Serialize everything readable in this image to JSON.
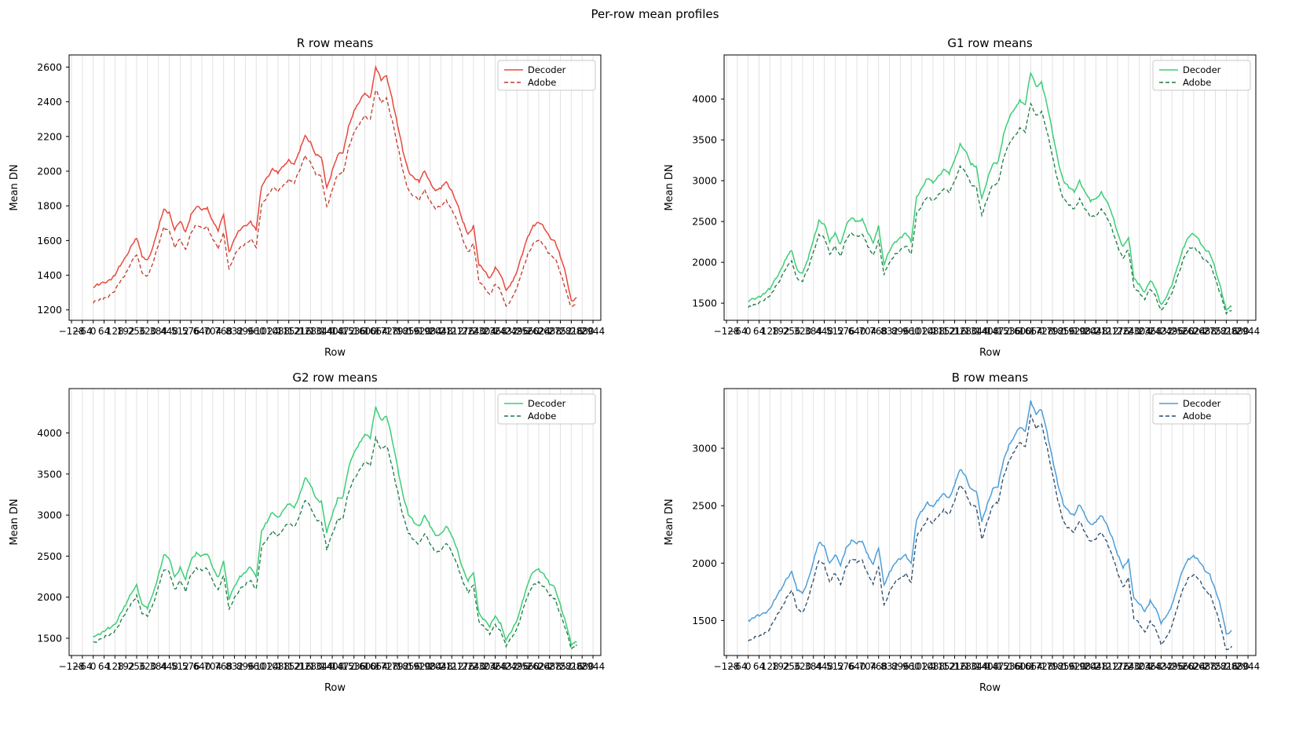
{
  "figure": {
    "title": "Per-row mean profiles",
    "background": "#ffffff"
  },
  "chart_data": {
    "type": "line",
    "suptitle": "Per-row mean profiles",
    "xlabel": "Row",
    "ylabel": "Mean DN",
    "legend": {
      "entries": [
        "Decoder",
        "Adobe"
      ],
      "position": "upper right"
    },
    "grid": {
      "axis": "x",
      "color": "#dedede"
    },
    "xlim": [
      -142,
      2990
    ],
    "xticks": [
      -128,
      -64,
      0,
      64,
      128,
      192,
      256,
      320,
      384,
      448,
      512,
      576,
      640,
      704,
      768,
      832,
      896,
      960,
      1024,
      1088,
      1152,
      1216,
      1280,
      1344,
      1408,
      1472,
      1536,
      1600,
      1664,
      1728,
      1792,
      1856,
      1920,
      1984,
      2048,
      2112,
      2176,
      2240,
      2304,
      2368,
      2432,
      2496,
      2560,
      2624,
      2688,
      2752,
      2816,
      2880,
      2944
    ],
    "shared_x": [
      0,
      32,
      64,
      96,
      128,
      160,
      192,
      224,
      256,
      288,
      320,
      352,
      384,
      416,
      448,
      480,
      512,
      544,
      576,
      608,
      640,
      672,
      704,
      736,
      768,
      800,
      832,
      864,
      896,
      928,
      960,
      992,
      1024,
      1056,
      1088,
      1120,
      1152,
      1184,
      1216,
      1248,
      1280,
      1312,
      1344,
      1376,
      1408,
      1440,
      1472,
      1504,
      1536,
      1568,
      1600,
      1632,
      1664,
      1696,
      1728,
      1760,
      1792,
      1824,
      1856,
      1888,
      1920,
      1952,
      1984,
      2016,
      2048,
      2080,
      2112,
      2144,
      2176,
      2208,
      2240,
      2272,
      2304,
      2336,
      2368,
      2400,
      2432,
      2464,
      2496,
      2528,
      2560,
      2592,
      2624,
      2656,
      2688,
      2720,
      2752,
      2784,
      2816,
      2848
    ],
    "charts": [
      {
        "key": "R",
        "title": "R row means",
        "ylim": [
          1140,
          2670
        ],
        "yticks": [
          1200,
          1400,
          1600,
          1800,
          2000,
          2200,
          2400,
          2600
        ],
        "series": [
          {
            "name": "Decoder",
            "style": "solid",
            "color": "#e8483d",
            "values": [
              1330,
              1345,
              1358,
              1374,
              1400,
              1457,
              1508,
              1571,
              1616,
              1508,
              1489,
              1565,
              1673,
              1781,
              1762,
              1660,
              1711,
              1648,
              1749,
              1794,
              1775,
              1787,
              1711,
              1654,
              1749,
              1533,
              1609,
              1660,
              1686,
              1711,
              1660,
              1914,
              1965,
              2016,
              1990,
              2029,
              2067,
              2041,
              2117,
              2206,
              2168,
              2092,
              2079,
              1902,
              2003,
              2092,
              2105,
              2257,
              2346,
              2397,
              2448,
              2422,
              2600,
              2524,
              2549,
              2422,
              2270,
              2117,
              2003,
              1965,
              1940,
              2003,
              1940,
              1889,
              1902,
              1940,
              1889,
              1813,
              1711,
              1635,
              1686,
              1457,
              1425,
              1381,
              1444,
              1400,
              1311,
              1355,
              1419,
              1521,
              1622,
              1686,
              1705,
              1673,
              1622,
              1597,
              1508,
              1406,
              1254,
              1273
            ]
          },
          {
            "name": "Adobe",
            "style": "dashed",
            "color": "#c0392b",
            "values": [
              1240,
              1255,
              1267,
              1283,
              1308,
              1363,
              1412,
              1474,
              1517,
              1412,
              1394,
              1468,
              1572,
              1677,
              1658,
              1560,
              1609,
              1548,
              1646,
              1689,
              1671,
              1683,
              1609,
              1554,
              1646,
              1437,
              1511,
              1560,
              1584,
              1609,
              1560,
              1806,
              1855,
              1904,
              1880,
              1917,
              1953,
              1929,
              2003,
              2089,
              2052,
              1978,
              1966,
              1794,
              1892,
              1978,
              1990,
              2138,
              2224,
              2273,
              2322,
              2298,
              2470,
              2396,
              2421,
              2298,
              2150,
              2003,
              1892,
              1855,
              1830,
              1892,
              1830,
              1781,
              1794,
              1830,
              1781,
              1707,
              1609,
              1535,
              1584,
              1363,
              1332,
              1289,
              1351,
              1308,
              1222,
              1265,
              1326,
              1425,
              1523,
              1584,
              1603,
              1572,
              1523,
              1498,
              1412,
              1314,
              1216,
              1235
            ]
          }
        ]
      },
      {
        "key": "G1",
        "title": "G1 row means",
        "ylim": [
          1290,
          4540
        ],
        "yticks": [
          1500,
          2000,
          2500,
          3000,
          3500,
          4000
        ],
        "series": [
          {
            "name": "Decoder",
            "style": "solid",
            "color": "#3cce76",
            "values": [
              1520,
              1554,
              1582,
              1618,
              1674,
              1800,
              1912,
              2052,
              2150,
              1912,
              1870,
              2038,
              2276,
              2514,
              2472,
              2248,
              2360,
              2220,
              2444,
              2542,
              2500,
              2528,
              2360,
              2234,
              2444,
              1968,
              2136,
              2248,
              2304,
              2360,
              2248,
              2808,
              2920,
              3032,
              2976,
              3060,
              3144,
              3088,
              3256,
              3452,
              3368,
              3200,
              3172,
              2780,
              3004,
              3200,
              3228,
              3564,
              3760,
              3872,
              3984,
              3928,
              4320,
              4152,
              4208,
              3928,
              3592,
              3256,
              3004,
              2920,
              2864,
              3004,
              2864,
              2752,
              2780,
              2864,
              2752,
              2584,
              2360,
              2192,
              2304,
              1800,
              1730,
              1632,
              1772,
              1674,
              1478,
              1576,
              1716,
              1940,
              2164,
              2304,
              2346,
              2276,
              2164,
              2108,
              1912,
              1688,
              1420,
              1462
            ]
          },
          {
            "name": "Adobe",
            "style": "dashed",
            "color": "#1b7a44",
            "values": [
              1450,
              1480,
              1505,
              1538,
              1588,
              1700,
              1800,
              1925,
              2013,
              1800,
              1763,
              1913,
              2125,
              2338,
              2300,
              2100,
              2200,
              2075,
              2275,
              2363,
              2325,
              2350,
              2200,
              2088,
              2275,
              1850,
              2000,
              2100,
              2150,
              2200,
              2100,
              2600,
              2700,
              2800,
              2750,
              2825,
              2900,
              2850,
              3000,
              3175,
              3100,
              2950,
              2925,
              2575,
              2775,
              2950,
              2975,
              3275,
              3450,
              3550,
              3650,
              3600,
              3950,
              3800,
              3850,
              3600,
              3300,
              3000,
              2775,
              2700,
              2650,
              2775,
              2650,
              2550,
              2575,
              2650,
              2550,
              2400,
              2200,
              2050,
              2150,
              1700,
              1638,
              1550,
              1675,
              1588,
              1413,
              1500,
              1625,
              1825,
              2025,
              2150,
              2188,
              2125,
              2025,
              1975,
              1800,
              1600,
              1370,
              1408
            ]
          }
        ]
      },
      {
        "key": "G2",
        "title": "G2 row means",
        "ylim": [
          1290,
          4540
        ],
        "yticks": [
          1500,
          2000,
          2500,
          3000,
          3500,
          4000
        ],
        "series": [
          {
            "name": "Decoder",
            "style": "solid",
            "color": "#3cce76",
            "values": [
              1525,
              1550,
              1585,
              1622,
              1670,
              1805,
              1908,
              2048,
              2155,
              1915,
              1866,
              2042,
              2270,
              2518,
              2468,
              2244,
              2364,
              2216,
              2448,
              2538,
              2504,
              2524,
              2356,
              2238,
              2440,
              1972,
              2132,
              2252,
              2300,
              2364,
              2244,
              2812,
              2916,
              3036,
              2972,
              3064,
              3140,
              3092,
              3252,
              3456,
              3364,
              3204,
              3168,
              2784,
              3000,
              3204,
              3224,
              3568,
              3756,
              3876,
              3980,
              3932,
              4316,
              4156,
              4204,
              3924,
              3596,
              3252,
              3008,
              2916,
              2868,
              3000,
              2868,
              2756,
              2776,
              2868,
              2748,
              2588,
              2356,
              2196,
              2300,
              1804,
              1726,
              1636,
              1768,
              1678,
              1474,
              1580,
              1712,
              1944,
              2160,
              2308,
              2342,
              2280,
              2160,
              2112,
              1908,
              1692,
              1424,
              1458
            ]
          },
          {
            "name": "Adobe",
            "style": "dashed",
            "color": "#1b7a44",
            "values": [
              1452,
              1478,
              1508,
              1535,
              1590,
              1696,
              1804,
              1921,
              2017,
              1796,
              1766,
              1910,
              2129,
              2334,
              2304,
              2096,
              2204,
              2071,
              2279,
              2359,
              2329,
              2346,
              2204,
              2092,
              2271,
              1854,
              1996,
              2104,
              2146,
              2204,
              2096,
              2604,
              2696,
              2804,
              2746,
              2829,
              2896,
              2854,
              2996,
              3179,
              3096,
              2954,
              2921,
              2579,
              2771,
              2954,
              2971,
              3279,
              3446,
              3554,
              3646,
              3604,
              3946,
              3804,
              3846,
              3596,
              3304,
              2996,
              2779,
              2696,
              2654,
              2771,
              2646,
              2554,
              2571,
              2654,
              2546,
              2404,
              2196,
              2054,
              2146,
              1704,
              1634,
              1554,
              1671,
              1592,
              1409,
              1504,
              1621,
              1829,
              2021,
              2154,
              2184,
              2129,
              2021,
              1979,
              1796,
              1604,
              1366,
              1412
            ]
          }
        ]
      },
      {
        "key": "B",
        "title": "B row means",
        "ylim": [
          1195,
          3520
        ],
        "yticks": [
          1500,
          2000,
          2500,
          3000
        ],
        "series": [
          {
            "name": "Decoder",
            "style": "solid",
            "color": "#4d9ed9",
            "values": [
              1500,
              1523,
              1542,
              1567,
              1605,
              1691,
              1767,
              1863,
              1930,
              1767,
              1739,
              1853,
              2016,
              2178,
              2149,
              1997,
              2073,
              1978,
              2130,
              2197,
              2169,
              2188,
              2073,
              1987,
              2130,
              1806,
              1920,
              1997,
              2035,
              2073,
              1997,
              2379,
              2455,
              2531,
              2493,
              2551,
              2608,
              2570,
              2684,
              2818,
              2761,
              2646,
              2627,
              2360,
              2512,
              2646,
              2665,
              2894,
              3028,
              3104,
              3181,
              3143,
              3410,
              3295,
              3334,
              3143,
              2913,
              2684,
              2512,
              2455,
              2417,
              2512,
              2417,
              2340,
              2360,
              2417,
              2340,
              2226,
              2073,
              1958,
              2035,
              1691,
              1643,
              1576,
              1672,
              1605,
              1471,
              1538,
              1634,
              1787,
              1939,
              2035,
              2064,
              2016,
              1939,
              1901,
              1767,
              1615,
              1385,
              1414
            ]
          },
          {
            "name": "Adobe",
            "style": "dashed",
            "color": "#2a4a68",
            "values": [
              1320,
              1344,
              1363,
              1389,
              1428,
              1517,
              1596,
              1694,
              1763,
              1596,
              1566,
              1684,
              1852,
              2019,
              1990,
              1832,
              1911,
              1813,
              1970,
              2039,
              2010,
              2029,
              1911,
              1822,
              1970,
              1635,
              1753,
              1832,
              1872,
              1911,
              1832,
              2226,
              2305,
              2384,
              2344,
              2404,
              2463,
              2423,
              2541,
              2679,
              2620,
              2502,
              2482,
              2207,
              2364,
              2502,
              2522,
              2758,
              2896,
              2975,
              3054,
              3014,
              3290,
              3172,
              3211,
              3014,
              2778,
              2541,
              2364,
              2305,
              2266,
              2364,
              2266,
              2187,
              2207,
              2266,
              2187,
              2069,
              1911,
              1793,
              1872,
              1517,
              1468,
              1399,
              1497,
              1428,
              1290,
              1359,
              1458,
              1615,
              1773,
              1872,
              1901,
              1852,
              1773,
              1734,
              1596,
              1439,
              1242,
              1272
            ]
          }
        ]
      }
    ]
  }
}
